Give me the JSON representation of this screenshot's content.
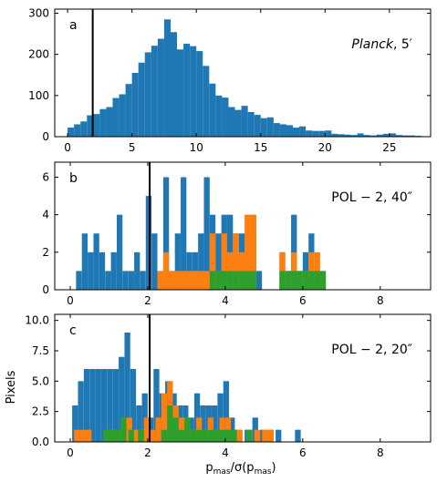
{
  "figure": {
    "ylabel": "Pixels",
    "xlabel_base": "p",
    "xlabel_sub": "mas",
    "xlabel_mid": "/σ(p",
    "xlabel_sub2": "mas",
    "xlabel_end": ")"
  },
  "colors": {
    "blue": "#1f77b4",
    "orange": "#ff7f0e",
    "green": "#2ca02c",
    "vline": "#000000"
  },
  "chart_data": [
    {
      "type": "bar",
      "panel_label": "a",
      "annotation_italic": "Planck",
      "annotation_rest": ",  5′",
      "xlim": [
        -1,
        28.2
      ],
      "ylim": [
        0,
        310
      ],
      "xticks": [
        0,
        5,
        10,
        15,
        20,
        25
      ],
      "yticks": [
        0,
        100,
        200,
        300
      ],
      "ytick_labels": [
        "0",
        "100",
        "200",
        "300"
      ],
      "vline_x": 1.95,
      "bin_width": 0.5,
      "series": [
        {
          "color": "blue",
          "x": [
            0.0,
            0.5,
            1.0,
            1.5,
            2.0,
            2.5,
            3.0,
            3.5,
            4.0,
            4.5,
            5.0,
            5.5,
            6.0,
            6.5,
            7.0,
            7.5,
            8.0,
            8.5,
            9.0,
            9.5,
            10.0,
            10.5,
            11.0,
            11.5,
            12.0,
            12.5,
            13.0,
            13.5,
            14.0,
            14.5,
            15.0,
            15.5,
            16.0,
            16.5,
            17.0,
            17.5,
            18.0,
            18.5,
            19.0,
            19.5,
            20.0,
            20.5,
            21.0,
            21.5,
            22.0,
            22.5,
            23.0,
            23.5,
            24.0,
            24.5,
            25.0,
            25.5,
            26.0,
            26.5,
            27.0
          ],
          "values": [
            22,
            30,
            37,
            52,
            55,
            67,
            72,
            94,
            103,
            128,
            155,
            180,
            205,
            221,
            238,
            285,
            254,
            212,
            226,
            220,
            208,
            172,
            129,
            100,
            95,
            72,
            65,
            75,
            60,
            53,
            45,
            47,
            33,
            30,
            28,
            22,
            25,
            15,
            14,
            14,
            15,
            7,
            6,
            5,
            4,
            8,
            4,
            3,
            5,
            7,
            8,
            4,
            3,
            3,
            2
          ]
        }
      ]
    },
    {
      "type": "bar",
      "panel_label": "b",
      "annotation": "POL − 2,  40″",
      "xlim": [
        -0.4,
        9.3
      ],
      "ylim": [
        0,
        6.8
      ],
      "xticks": [
        0,
        2,
        4,
        6,
        8
      ],
      "yticks": [
        0,
        2,
        4,
        6
      ],
      "ytick_labels": [
        "0",
        "2",
        "4",
        "6"
      ],
      "vline_x": 2.05,
      "bin_width": 0.148,
      "series": [
        {
          "color": "blue",
          "x": [
            0.15,
            0.3,
            0.45,
            0.6,
            0.75,
            0.9,
            1.05,
            1.2,
            1.35,
            1.5,
            1.65,
            1.8,
            1.95,
            2.1,
            2.25,
            2.4,
            2.55,
            2.7,
            2.85,
            3.0,
            3.15,
            3.3,
            3.45,
            3.6,
            3.75,
            3.9,
            4.05,
            4.2,
            4.35,
            4.5,
            4.65,
            4.8,
            5.4,
            5.55,
            5.7,
            5.85,
            6.0,
            6.15,
            6.3
          ],
          "values": [
            1,
            3,
            2,
            3,
            2,
            1,
            2,
            4,
            1,
            1,
            2,
            1,
            5,
            3,
            1,
            6,
            1,
            3,
            6,
            2,
            2,
            3,
            6,
            4,
            3,
            4,
            4,
            3,
            3,
            3,
            4,
            1,
            2,
            1,
            4,
            1,
            2,
            3,
            1
          ]
        },
        {
          "color": "orange",
          "x": [
            2.25,
            2.4,
            2.55,
            2.7,
            2.85,
            3.0,
            3.15,
            3.3,
            3.45,
            3.6,
            3.75,
            3.9,
            4.05,
            4.2,
            4.35,
            4.5,
            4.65,
            5.4,
            5.55,
            5.7,
            5.85,
            6.0,
            6.15,
            6.3
          ],
          "values": [
            1,
            2,
            1,
            1,
            1,
            1,
            1,
            1,
            1,
            3,
            1,
            3,
            2,
            3,
            2,
            4,
            4,
            2,
            1,
            2,
            1,
            1,
            2,
            2
          ]
        },
        {
          "color": "green",
          "x": [
            3.6,
            3.75,
            3.9,
            4.05,
            4.2,
            4.35,
            4.5,
            4.65,
            5.4,
            5.55,
            5.7,
            5.85,
            6.0,
            6.15,
            6.3,
            6.45
          ],
          "values": [
            1,
            1,
            1,
            1,
            1,
            1,
            1,
            1,
            1,
            1,
            1,
            1,
            1,
            1,
            1,
            1
          ]
        }
      ]
    },
    {
      "type": "bar",
      "panel_label": "c",
      "annotation": "POL − 2,  20″",
      "xlim": [
        -0.4,
        9.3
      ],
      "ylim": [
        0,
        10.5
      ],
      "xticks": [
        0,
        2,
        4,
        6,
        8
      ],
      "yticks": [
        0,
        2.5,
        5,
        7.5,
        10
      ],
      "ytick_labels": [
        "0.0",
        "2.5",
        "5.0",
        "7.5",
        "10.0"
      ],
      "vline_x": 2.05,
      "bin_width": 0.148,
      "series": [
        {
          "color": "blue",
          "x": [
            0.05,
            0.2,
            0.35,
            0.5,
            0.65,
            0.8,
            0.95,
            1.1,
            1.25,
            1.4,
            1.55,
            1.7,
            1.85,
            2.0,
            2.15,
            2.3,
            2.45,
            2.6,
            2.75,
            2.9,
            3.05,
            3.2,
            3.35,
            3.5,
            3.65,
            3.8,
            3.95,
            4.1,
            4.25,
            4.5,
            4.7,
            4.9,
            5.1,
            5.3,
            5.8
          ],
          "values": [
            3,
            5,
            6,
            6,
            6,
            6,
            6,
            6,
            7,
            9,
            6,
            3,
            4,
            2,
            6,
            4,
            5,
            4,
            3,
            3,
            2,
            4,
            3,
            3,
            3,
            4,
            5,
            2,
            1,
            1,
            2,
            1,
            1,
            1,
            1
          ]
        },
        {
          "color": "orange",
          "x": [
            0.1,
            0.25,
            0.4,
            1.0,
            1.25,
            1.45,
            1.6,
            1.75,
            1.9,
            2.05,
            2.2,
            2.35,
            2.5,
            2.65,
            2.8,
            2.95,
            3.1,
            3.25,
            3.4,
            3.55,
            3.7,
            3.85,
            4.0,
            4.3,
            4.55,
            4.75,
            4.95,
            5.1
          ],
          "values": [
            1,
            1,
            1,
            1,
            1,
            2,
            1,
            1,
            2,
            1,
            2,
            4,
            5,
            3,
            2,
            2,
            1,
            2,
            1,
            2,
            1,
            2,
            2,
            1,
            1,
            1,
            1,
            1
          ]
        },
        {
          "color": "green",
          "x": [
            0.85,
            1.0,
            1.15,
            1.3,
            1.5,
            1.75,
            2.35,
            2.5,
            2.65,
            2.8,
            2.95,
            3.1,
            3.25,
            3.4,
            3.55,
            3.7,
            3.85,
            4.0,
            4.15,
            4.55
          ],
          "values": [
            1,
            1,
            1,
            2,
            1,
            1,
            1,
            3,
            2,
            1,
            2,
            1,
            1,
            1,
            1,
            1,
            1,
            1,
            1,
            1
          ]
        }
      ]
    }
  ]
}
